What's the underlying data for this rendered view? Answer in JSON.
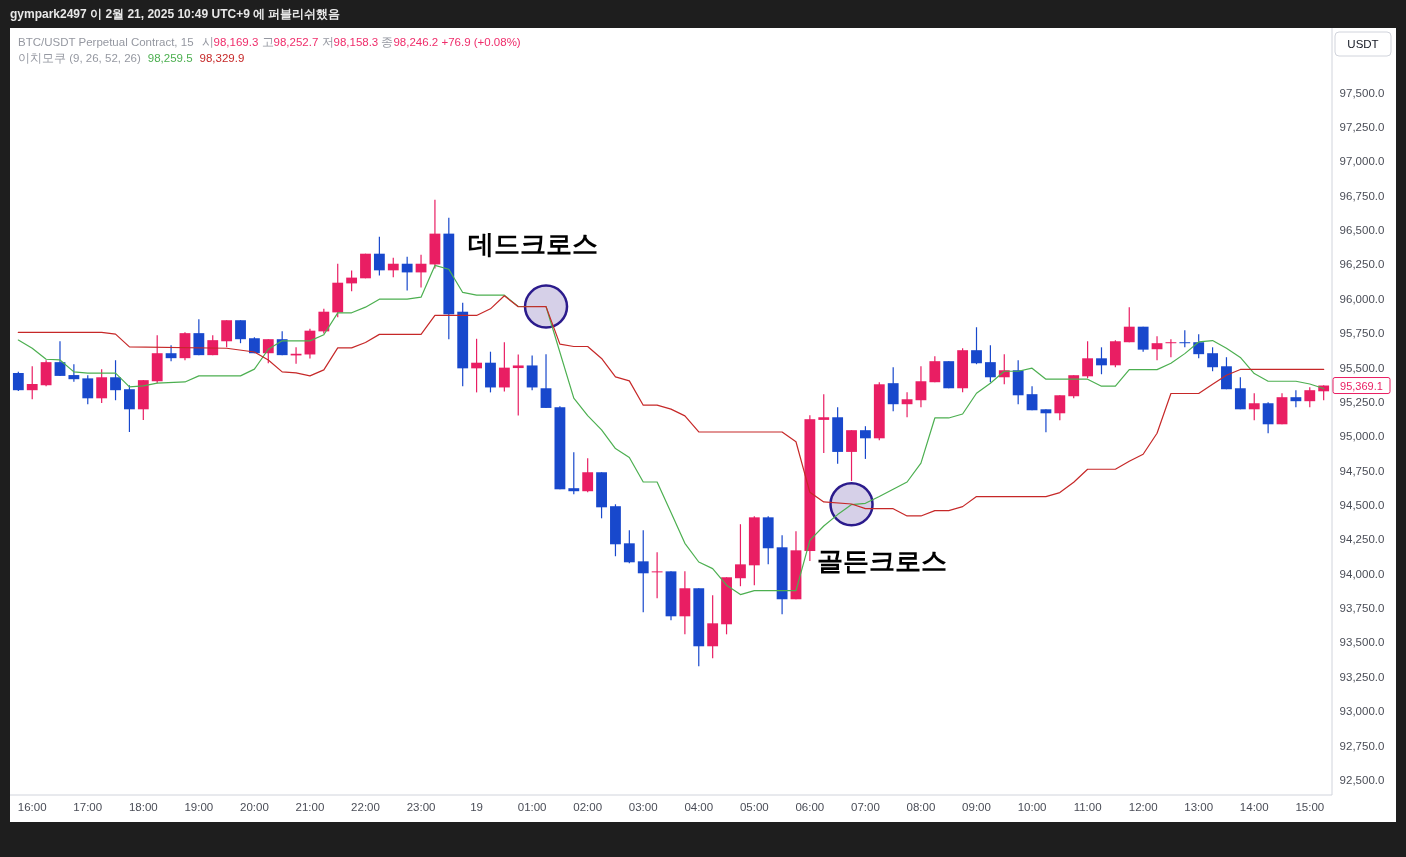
{
  "chart_data": {
    "type": "candlestick",
    "title": "BTC/USDT Perpetual Contract, 15",
    "subtitle": "시98,169.3 고98,252.7 저98,158.3 종98,246.2 +76.9 (+0.08%)",
    "ylabel": "USDT",
    "annotations": [
      "gympark2497 이 2월 21, 2025 10:49 UTC+9 에 퍼블리쉬했음",
      "이치모쿠 (9, 26, 52, 26)",
      "98,259.5",
      "98,329.9",
      "95,369.1",
      {
        "text": "데드크로스",
        "x": "2025-02-19T01:15",
        "y": 95943
      },
      {
        "text": "골든크로스",
        "x": "2025-02-19T06:45",
        "y": 94505
      }
    ],
    "x": [
      "2025-02-18T15:45",
      "2025-02-18T16:00",
      "2025-02-18T16:15",
      "2025-02-18T16:30",
      "2025-02-18T16:45",
      "2025-02-18T17:00",
      "2025-02-18T17:15",
      "2025-02-18T17:30",
      "2025-02-18T17:45",
      "2025-02-18T18:00",
      "2025-02-18T18:15",
      "2025-02-18T18:30",
      "2025-02-18T18:45",
      "2025-02-18T19:00",
      "2025-02-18T19:15",
      "2025-02-18T19:30",
      "2025-02-18T19:45",
      "2025-02-18T20:00",
      "2025-02-18T20:15",
      "2025-02-18T20:30",
      "2025-02-18T20:45",
      "2025-02-18T21:00",
      "2025-02-18T21:15",
      "2025-02-18T21:30",
      "2025-02-18T21:45",
      "2025-02-18T22:00",
      "2025-02-18T22:15",
      "2025-02-18T22:30",
      "2025-02-18T22:45",
      "2025-02-18T23:00",
      "2025-02-18T23:15",
      "2025-02-18T23:30",
      "2025-02-18T23:45",
      "2025-02-19T00:00",
      "2025-02-19T00:15",
      "2025-02-19T00:30",
      "2025-02-19T00:45",
      "2025-02-19T01:00",
      "2025-02-19T01:15",
      "2025-02-19T01:30",
      "2025-02-19T01:45",
      "2025-02-19T02:00",
      "2025-02-19T02:15",
      "2025-02-19T02:30",
      "2025-02-19T02:45",
      "2025-02-19T03:00",
      "2025-02-19T03:15",
      "2025-02-19T03:30",
      "2025-02-19T03:45",
      "2025-02-19T04:00",
      "2025-02-19T04:15",
      "2025-02-19T04:30",
      "2025-02-19T04:45",
      "2025-02-19T05:00",
      "2025-02-19T05:15",
      "2025-02-19T05:30",
      "2025-02-19T05:45",
      "2025-02-19T06:00",
      "2025-02-19T06:15",
      "2025-02-19T06:30",
      "2025-02-19T06:45",
      "2025-02-19T07:00",
      "2025-02-19T07:15",
      "2025-02-19T07:30",
      "2025-02-19T07:45",
      "2025-02-19T08:00",
      "2025-02-19T08:15",
      "2025-02-19T08:30",
      "2025-02-19T08:45",
      "2025-02-19T09:00",
      "2025-02-19T09:15",
      "2025-02-19T09:30",
      "2025-02-19T09:45",
      "2025-02-19T10:00",
      "2025-02-19T10:15",
      "2025-02-19T10:30",
      "2025-02-19T10:45",
      "2025-02-19T11:00",
      "2025-02-19T11:15",
      "2025-02-19T11:30",
      "2025-02-19T11:45",
      "2025-02-19T12:00",
      "2025-02-19T12:15",
      "2025-02-19T12:30",
      "2025-02-19T12:45",
      "2025-02-19T13:00",
      "2025-02-19T13:15",
      "2025-02-19T13:30",
      "2025-02-19T13:45",
      "2025-02-19T14:00",
      "2025-02-19T14:15",
      "2025-02-19T14:30",
      "2025-02-19T14:45",
      "2025-02-19T15:00",
      "2025-02-19T15:15"
    ],
    "ohlc": [
      [
        95460,
        95470,
        95330,
        95335
      ],
      [
        95335,
        95510,
        95270,
        95380
      ],
      [
        95371,
        95553,
        95364,
        95539
      ],
      [
        95539,
        95691,
        95439,
        95439
      ],
      [
        95445,
        95524,
        95396,
        95415
      ],
      [
        95421,
        95444,
        95233,
        95276
      ],
      [
        95276,
        95488,
        95242,
        95429
      ],
      [
        95429,
        95553,
        95262,
        95335
      ],
      [
        95342,
        95371,
        95031,
        95196
      ],
      [
        95196,
        95410,
        95119,
        95408
      ],
      [
        95400,
        95735,
        95386,
        95604
      ],
      [
        95604,
        95662,
        95546,
        95568
      ],
      [
        95568,
        95757,
        95553,
        95750
      ],
      [
        95750,
        95852,
        95590,
        95590
      ],
      [
        95590,
        95735,
        95590,
        95699
      ],
      [
        95691,
        95844,
        95648,
        95844
      ],
      [
        95844,
        95844,
        95677,
        95706
      ],
      [
        95713,
        95720,
        95604,
        95604
      ],
      [
        95604,
        95706,
        95531,
        95706
      ],
      [
        95706,
        95764,
        95590,
        95590
      ],
      [
        95588,
        95648,
        95527,
        95600
      ],
      [
        95595,
        95782,
        95566,
        95768
      ],
      [
        95763,
        95928,
        95748,
        95906
      ],
      [
        95901,
        96255,
        95865,
        96117
      ],
      [
        96112,
        96205,
        96054,
        96154
      ],
      [
        96149,
        96328,
        96149,
        96328
      ],
      [
        96328,
        96452,
        96170,
        96207
      ],
      [
        96207,
        96299,
        96156,
        96255
      ],
      [
        96255,
        96306,
        96061,
        96192
      ],
      [
        96192,
        96321,
        96083,
        96255
      ],
      [
        96250,
        96721,
        96221,
        96474
      ],
      [
        96474,
        96590,
        95705,
        95887
      ],
      [
        95906,
        95972,
        95364,
        95494
      ],
      [
        95494,
        95709,
        95319,
        95535
      ],
      [
        95535,
        95615,
        95319,
        95355
      ],
      [
        95355,
        95684,
        95326,
        95499
      ],
      [
        95496,
        95595,
        95151,
        95515
      ],
      [
        95515,
        95588,
        95334,
        95355
      ],
      [
        95349,
        95597,
        95206,
        95206
      ],
      [
        95211,
        95218,
        94614,
        94614
      ],
      [
        94622,
        94884,
        94578,
        94600
      ],
      [
        94600,
        94840,
        94593,
        94738
      ],
      [
        94738,
        94738,
        94403,
        94483
      ],
      [
        94491,
        94505,
        94127,
        94214
      ],
      [
        94221,
        94316,
        94076,
        94083
      ],
      [
        94090,
        94316,
        93719,
        94003
      ],
      [
        94010,
        94156,
        93821,
        94017
      ],
      [
        94017,
        94017,
        93661,
        93690
      ],
      [
        93690,
        94017,
        93559,
        93894
      ],
      [
        93894,
        93894,
        93326,
        93472
      ],
      [
        93472,
        93843,
        93384,
        93639
      ],
      [
        93632,
        93974,
        93559,
        93974
      ],
      [
        93967,
        94360,
        93909,
        94068
      ],
      [
        94061,
        94418,
        93916,
        94410
      ],
      [
        94410,
        94418,
        94068,
        94185
      ],
      [
        94192,
        94280,
        93705,
        93814
      ],
      [
        93814,
        94309,
        93814,
        94170
      ],
      [
        94165,
        95153,
        94092,
        95124
      ],
      [
        95119,
        95306,
        94878,
        95138
      ],
      [
        95138,
        95211,
        94799,
        94886
      ],
      [
        94886,
        95044,
        94675,
        95044
      ],
      [
        95044,
        95073,
        94835,
        94985
      ],
      [
        94985,
        95393,
        94971,
        95378
      ],
      [
        95386,
        95502,
        95182,
        95233
      ],
      [
        95233,
        95320,
        95138,
        95269
      ],
      [
        95262,
        95509,
        95211,
        95400
      ],
      [
        95393,
        95582,
        95393,
        95546
      ],
      [
        95546,
        95546,
        95349,
        95349
      ],
      [
        95349,
        95640,
        95320,
        95626
      ],
      [
        95626,
        95793,
        95524,
        95531
      ],
      [
        95539,
        95662,
        95393,
        95429
      ],
      [
        95429,
        95597,
        95378,
        95480
      ],
      [
        95480,
        95553,
        95233,
        95298
      ],
      [
        95306,
        95364,
        95189,
        95189
      ],
      [
        95196,
        95196,
        95029,
        95167
      ],
      [
        95167,
        95298,
        95116,
        95298
      ],
      [
        95291,
        95444,
        95276,
        95444
      ],
      [
        95436,
        95691,
        95422,
        95567
      ],
      [
        95567,
        95647,
        95451,
        95516
      ],
      [
        95516,
        95698,
        95502,
        95691
      ],
      [
        95684,
        95939,
        95684,
        95797
      ],
      [
        95797,
        95797,
        95615,
        95630
      ],
      [
        95633,
        95728,
        95553,
        95677
      ],
      [
        95677,
        95706,
        95575,
        95684
      ],
      [
        95684,
        95771,
        95648,
        95677
      ],
      [
        95684,
        95742,
        95568,
        95597
      ],
      [
        95604,
        95647,
        95473,
        95502
      ],
      [
        95509,
        95575,
        95342,
        95342
      ],
      [
        95349,
        95429,
        95196,
        95196
      ],
      [
        95196,
        95313,
        95116,
        95240
      ],
      [
        95240,
        95247,
        95022,
        95087
      ],
      [
        95087,
        95313,
        95087,
        95284
      ],
      [
        95284,
        95335,
        95211,
        95255
      ],
      [
        95255,
        95357,
        95211,
        95335
      ],
      [
        95327,
        95371,
        95262,
        95369
      ]
    ],
    "colors": [
      "#1848cc",
      "#e91e63",
      "#e91e63",
      "#1848cc",
      "#1848cc",
      "#1848cc",
      "#e91e63",
      "#1848cc",
      "#1848cc",
      "#e91e63",
      "#e91e63",
      "#1848cc",
      "#e91e63",
      "#1848cc",
      "#e91e63",
      "#e91e63",
      "#1848cc",
      "#1848cc",
      "#e91e63",
      "#1848cc",
      "#e91e63",
      "#e91e63",
      "#e91e63",
      "#e91e63",
      "#e91e63",
      "#e91e63",
      "#1848cc",
      "#e91e63",
      "#1848cc",
      "#e91e63",
      "#e91e63",
      "#1848cc",
      "#1848cc",
      "#e91e63",
      "#1848cc",
      "#e91e63",
      "#e91e63",
      "#1848cc",
      "#1848cc",
      "#1848cc",
      "#1848cc",
      "#e91e63",
      "#1848cc",
      "#1848cc",
      "#1848cc",
      "#1848cc",
      "#e91e63",
      "#1848cc",
      "#e91e63",
      "#1848cc",
      "#e91e63",
      "#e91e63",
      "#e91e63",
      "#e91e63",
      "#1848cc",
      "#1848cc",
      "#e91e63",
      "#e91e63",
      "#e91e63",
      "#1848cc",
      "#e91e63",
      "#1848cc",
      "#e91e63",
      "#1848cc",
      "#e91e63",
      "#e91e63",
      "#e91e63",
      "#1848cc",
      "#e91e63",
      "#1848cc",
      "#1848cc",
      "#e91e63",
      "#1848cc",
      "#1848cc",
      "#1848cc",
      "#e91e63",
      "#e91e63",
      "#e91e63",
      "#1848cc",
      "#e91e63",
      "#e91e63",
      "#1848cc",
      "#e91e63",
      "#e91e63",
      "#1848cc",
      "#1848cc",
      "#1848cc",
      "#1848cc",
      "#1848cc",
      "#e91e63",
      "#1848cc",
      "#e91e63",
      "#1848cc",
      "#e91e63",
      "#e91e63"
    ],
    "series": [
      {
        "type": "line",
        "color": "#4caf50",
        "x": [
          "2025-02-18T15:45",
          "2025-02-18T16:00",
          "2025-02-18T16:15",
          "2025-02-18T16:30",
          "2025-02-18T16:45",
          "2025-02-18T17:00",
          "2025-02-18T17:30",
          "2025-02-18T17:45",
          "2025-02-18T18:00",
          "2025-02-18T18:15",
          "2025-02-18T18:45",
          "2025-02-18T19:00",
          "2025-02-18T19:45",
          "2025-02-18T20:00",
          "2025-02-18T20:15",
          "2025-02-18T20:30",
          "2025-02-18T21:00",
          "2025-02-18T21:15",
          "2025-02-18T21:30",
          "2025-02-18T21:45",
          "2025-02-18T22:00",
          "2025-02-18T22:15",
          "2025-02-18T22:45",
          "2025-02-18T23:00",
          "2025-02-18T23:15",
          "2025-02-18T23:30",
          "2025-02-18T23:45",
          "2025-02-19T00:00",
          "2025-02-19T00:30",
          "2025-02-19T00:45",
          "2025-02-19T01:15",
          "2025-02-19T01:45",
          "2025-02-19T02:00",
          "2025-02-19T02:15",
          "2025-02-19T02:30",
          "2025-02-19T02:45",
          "2025-02-19T03:00",
          "2025-02-19T03:15",
          "2025-02-19T03:30",
          "2025-02-19T03:45",
          "2025-02-19T04:00",
          "2025-02-19T04:15",
          "2025-02-19T04:30",
          "2025-02-19T04:45",
          "2025-02-19T05:00",
          "2025-02-19T05:45",
          "2025-02-19T06:00",
          "2025-02-19T06:15",
          "2025-02-19T06:30",
          "2025-02-19T06:45",
          "2025-02-19T07:00",
          "2025-02-19T07:15",
          "2025-02-19T07:30",
          "2025-02-19T07:45",
          "2025-02-19T08:00",
          "2025-02-19T08:15",
          "2025-02-19T08:30",
          "2025-02-19T08:45",
          "2025-02-19T09:00",
          "2025-02-19T09:15",
          "2025-02-19T09:30",
          "2025-02-19T09:45",
          "2025-02-19T10:00",
          "2025-02-19T10:15",
          "2025-02-19T11:00",
          "2025-02-19T11:15",
          "2025-02-19T11:30",
          "2025-02-19T11:45",
          "2025-02-19T12:15",
          "2025-02-19T12:30",
          "2025-02-19T12:45",
          "2025-02-19T13:00",
          "2025-02-19T13:15",
          "2025-02-19T13:30",
          "2025-02-19T13:45",
          "2025-02-19T14:00",
          "2025-02-19T14:15",
          "2025-02-19T14:45",
          "2025-02-19T15:00",
          "2025-02-19T15:15"
        ],
        "values": [
          95700,
          95640,
          95560,
          95555,
          95468,
          95459,
          95459,
          95359,
          95366,
          95386,
          95395,
          95439,
          95439,
          95488,
          95633,
          95694,
          95694,
          95738,
          95898,
          95898,
          95939,
          95997,
          95997,
          96012,
          96243,
          96215,
          96046,
          96026,
          96026,
          95944,
          95944,
          95277,
          95150,
          95046,
          94910,
          94845,
          94667,
          94667,
          94445,
          94221,
          94085,
          94037,
          93916,
          93848,
          93877,
          93877,
          94243,
          94347,
          94430,
          94503,
          94512,
          94561,
          94614,
          94667,
          94804,
          95133,
          95133,
          95162,
          95313,
          95386,
          95473,
          95473,
          95495,
          95415,
          95415,
          95364,
          95364,
          95485,
          95485,
          95531,
          95601,
          95686,
          95696,
          95640,
          95573,
          95456,
          95400,
          95400,
          95380,
          95347
        ]
      },
      {
        "type": "line",
        "color": "#c62828",
        "x": [
          "2025-02-18T15:45",
          "2025-02-18T17:15",
          "2025-02-18T17:30",
          "2025-02-18T17:45",
          "2025-02-18T19:30",
          "2025-02-18T20:00",
          "2025-02-18T20:15",
          "2025-02-18T20:30",
          "2025-02-18T20:45",
          "2025-02-18T21:00",
          "2025-02-18T21:15",
          "2025-02-18T21:30",
          "2025-02-18T21:45",
          "2025-02-18T22:00",
          "2025-02-18T22:15",
          "2025-02-18T23:00",
          "2025-02-18T23:15",
          "2025-02-19T00:00",
          "2025-02-19T00:15",
          "2025-02-19T00:30",
          "2025-02-19T00:45",
          "2025-02-19T01:15",
          "2025-02-19T01:30",
          "2025-02-19T01:45",
          "2025-02-19T02:00",
          "2025-02-19T02:15",
          "2025-02-19T02:30",
          "2025-02-19T02:45",
          "2025-02-19T03:00",
          "2025-02-19T03:15",
          "2025-02-19T03:30",
          "2025-02-19T03:45",
          "2025-02-19T04:00",
          "2025-02-19T05:30",
          "2025-02-19T05:45",
          "2025-02-19T06:00",
          "2025-02-19T06:15",
          "2025-02-19T06:45",
          "2025-02-19T07:00",
          "2025-02-19T07:30",
          "2025-02-19T07:45",
          "2025-02-19T08:00",
          "2025-02-19T08:15",
          "2025-02-19T08:30",
          "2025-02-19T08:45",
          "2025-02-19T09:00",
          "2025-02-19T10:15",
          "2025-02-19T10:30",
          "2025-02-19T10:45",
          "2025-02-19T11:00",
          "2025-02-19T11:30",
          "2025-02-19T11:45",
          "2025-02-19T12:00",
          "2025-02-19T12:15",
          "2025-02-19T12:30",
          "2025-02-19T13:00",
          "2025-02-19T13:15",
          "2025-02-19T13:30",
          "2025-02-19T13:45",
          "2025-02-19T15:15"
        ],
        "values": [
          95755,
          95755,
          95743,
          95650,
          95640,
          95613,
          95555,
          95468,
          95461,
          95439,
          95483,
          95643,
          95643,
          95682,
          95741,
          95741,
          95879,
          95879,
          95927,
          96022,
          95942,
          95943,
          95670,
          95653,
          95653,
          95566,
          95432,
          95403,
          95226,
          95226,
          95197,
          95148,
          95031,
          95031,
          94960,
          94592,
          94522,
          94507,
          94473,
          94473,
          94420,
          94420,
          94459,
          94459,
          94488,
          94561,
          94561,
          94590,
          94665,
          94760,
          94760,
          94818,
          94869,
          95022,
          95311,
          95311,
          95378,
          95444,
          95486,
          95486
        ]
      }
    ],
    "xlim": [
      "2025-02-18T15:36",
      "2025-02-19T15:24"
    ],
    "ylim": [
      92390,
      97970
    ],
    "xticks": [
      {
        "value": "2025-02-18T16:00",
        "label": "16:00"
      },
      {
        "value": "2025-02-18T17:00",
        "label": "17:00"
      },
      {
        "value": "2025-02-18T18:00",
        "label": "18:00"
      },
      {
        "value": "2025-02-18T19:00",
        "label": "19:00"
      },
      {
        "value": "2025-02-18T20:00",
        "label": "20:00"
      },
      {
        "value": "2025-02-18T21:00",
        "label": "21:00"
      },
      {
        "value": "2025-02-18T22:00",
        "label": "22:00"
      },
      {
        "value": "2025-02-18T23:00",
        "label": "23:00"
      },
      {
        "value": "2025-02-19T00:00",
        "label": "19"
      },
      {
        "value": "2025-02-19T01:00",
        "label": "01:00"
      },
      {
        "value": "2025-02-19T02:00",
        "label": "02:00"
      },
      {
        "value": "2025-02-19T03:00",
        "label": "03:00"
      },
      {
        "value": "2025-02-19T04:00",
        "label": "04:00"
      },
      {
        "value": "2025-02-19T05:00",
        "label": "05:00"
      },
      {
        "value": "2025-02-19T06:00",
        "label": "06:00"
      },
      {
        "value": "2025-02-19T07:00",
        "label": "07:00"
      },
      {
        "value": "2025-02-19T08:00",
        "label": "08:00"
      },
      {
        "value": "2025-02-19T09:00",
        "label": "09:00"
      },
      {
        "value": "2025-02-19T10:00",
        "label": "10:00"
      },
      {
        "value": "2025-02-19T11:00",
        "label": "11:00"
      },
      {
        "value": "2025-02-19T12:00",
        "label": "12:00"
      },
      {
        "value": "2025-02-19T13:00",
        "label": "13:00"
      },
      {
        "value": "2025-02-19T14:00",
        "label": "14:00"
      },
      {
        "value": "2025-02-19T15:00",
        "label": "15:00"
      }
    ],
    "yticks": [
      {
        "value": 92500,
        "label": "92,500.0"
      },
      {
        "value": 92750,
        "label": "92,750.0"
      },
      {
        "value": 93000,
        "label": "93,000.0"
      },
      {
        "value": 93250,
        "label": "93,250.0"
      },
      {
        "value": 93500,
        "label": "93,500.0"
      },
      {
        "value": 93750,
        "label": "93,750.0"
      },
      {
        "value": 94000,
        "label": "94,000.0"
      },
      {
        "value": 94250,
        "label": "94,250.0"
      },
      {
        "value": 94500,
        "label": "94,500.0"
      },
      {
        "value": 94750,
        "label": "94,750.0"
      },
      {
        "value": 95000,
        "label": "95,000.0"
      },
      {
        "value": 95250,
        "label": "95,250.0"
      },
      {
        "value": 95500,
        "label": "95,500.0"
      },
      {
        "value": 95750,
        "label": "95,750.0"
      },
      {
        "value": 96000,
        "label": "96,000.0"
      },
      {
        "value": 96250,
        "label": "96,250.0"
      },
      {
        "value": 96500,
        "label": "96,500.0"
      },
      {
        "value": 96750,
        "label": "96,750.0"
      },
      {
        "value": 97000,
        "label": "97,000.0"
      },
      {
        "value": 97250,
        "label": "97,250.0"
      },
      {
        "value": 97500,
        "label": "97,500.0"
      }
    ]
  }
}
